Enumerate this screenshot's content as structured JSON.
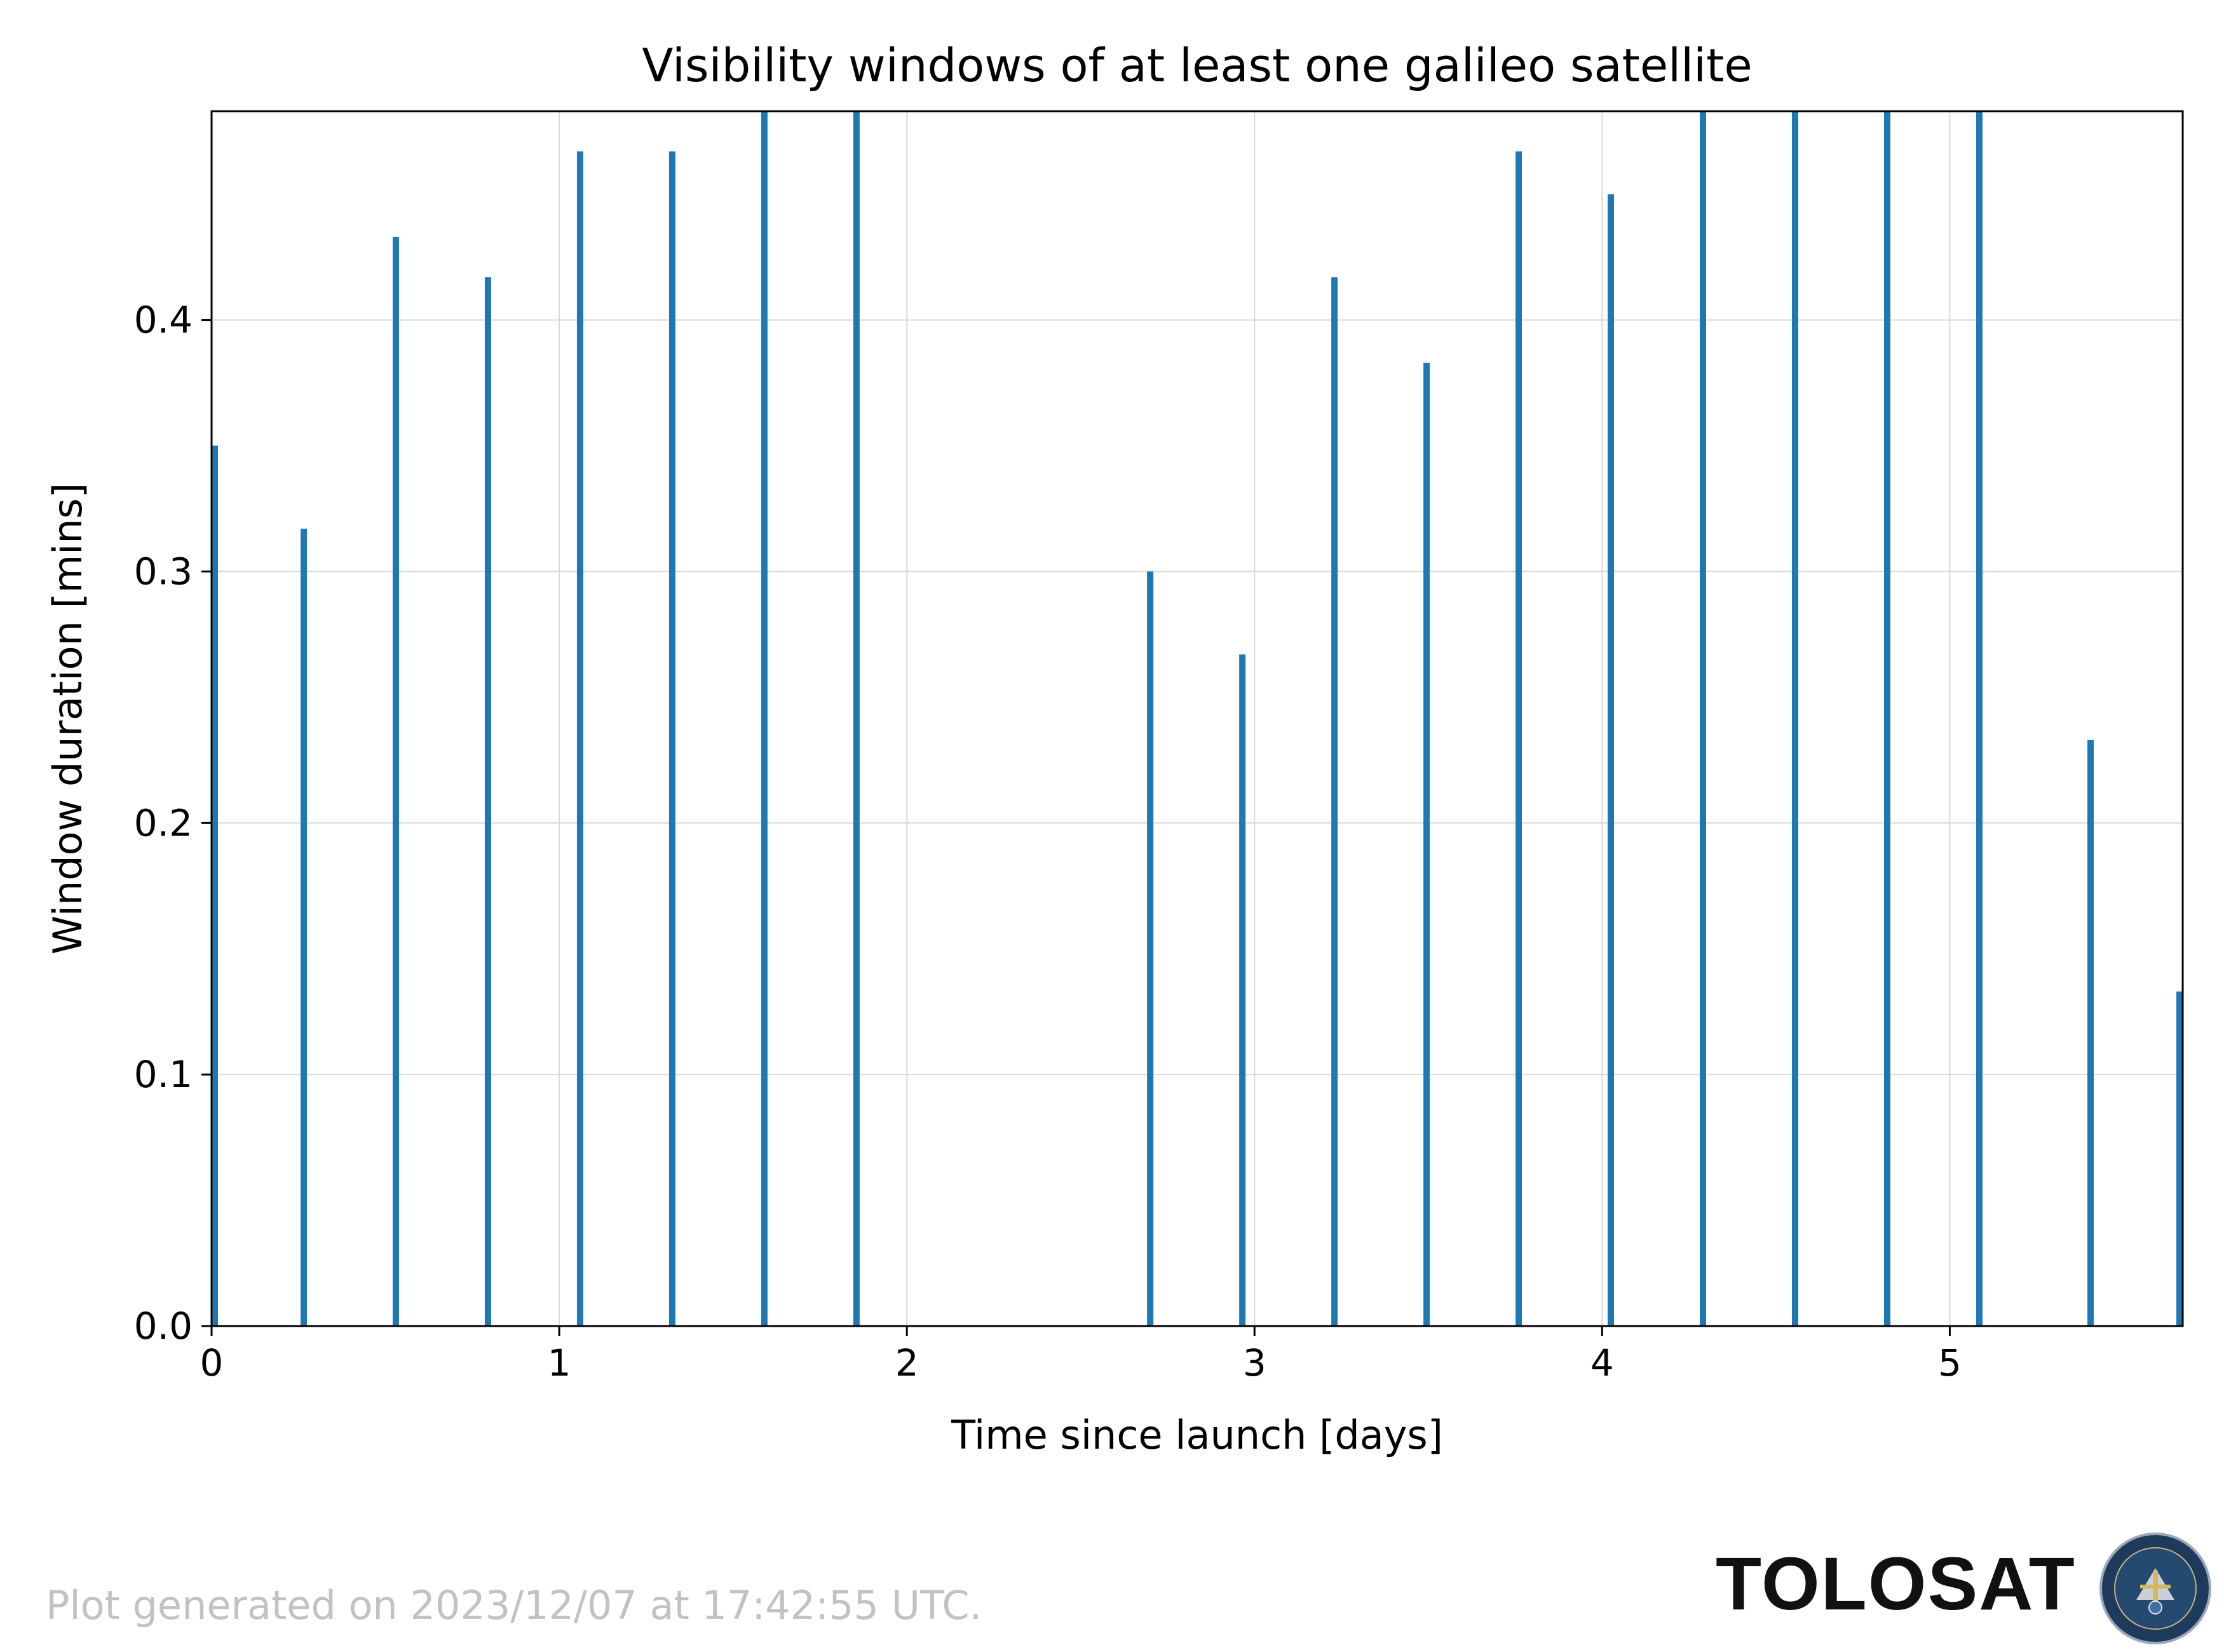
{
  "chart_data": {
    "type": "bar",
    "title": "Visibility windows of at least one galileo satellite",
    "xlabel": "Time since launch [days]",
    "ylabel": "Window duration [mins]",
    "xlim": [
      0,
      5.67
    ],
    "ylim": [
      0,
      0.483
    ],
    "xticks": [
      0,
      1,
      2,
      3,
      4,
      5
    ],
    "yticks": [
      0.0,
      0.1,
      0.2,
      0.3,
      0.4
    ],
    "ytick_labels": [
      "0.0",
      "0.1",
      "0.2",
      "0.3",
      "0.4"
    ],
    "grid": true,
    "bar_color": "#1f77b4",
    "x": [
      0.0,
      0.265,
      0.53,
      0.795,
      1.06,
      1.325,
      1.59,
      1.855,
      2.7,
      2.965,
      3.23,
      3.495,
      3.76,
      4.025,
      4.29,
      4.555,
      4.82,
      5.085,
      5.405,
      5.67
    ],
    "values": [
      0.35,
      0.317,
      0.433,
      0.417,
      0.467,
      0.467,
      0.483,
      0.483,
      0.3,
      0.267,
      0.417,
      0.383,
      0.467,
      0.45,
      0.483,
      0.483,
      0.483,
      0.483,
      0.233,
      0.133
    ]
  },
  "footer": {
    "generated_text": "Plot generated on 2023/12/07 at 17:42:55 UTC.",
    "brand": "TOLOSAT",
    "emblem_text": "ASTRE·CC SUPAERO · TOLOSAT"
  }
}
